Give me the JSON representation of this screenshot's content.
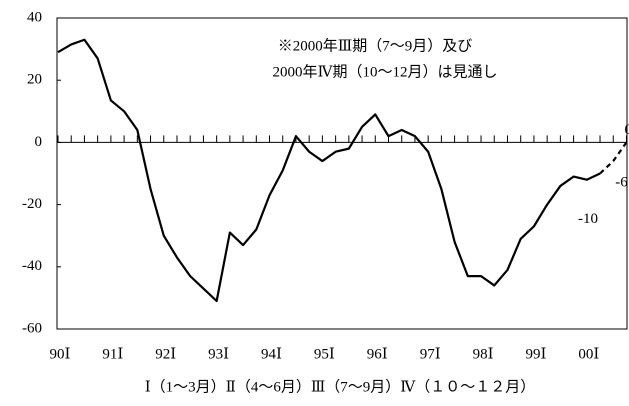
{
  "chart_data": {
    "type": "line",
    "annotation": [
      "※2000年Ⅲ期（7～9月）及び",
      "2000年Ⅳ期（10～12月）は見通し"
    ],
    "caption": "Ⅰ（1～3月）Ⅱ（4～6月）Ⅲ（7～9月）Ⅳ（１０～１２月）",
    "categories": [
      "90Ⅰ",
      null,
      null,
      null,
      "91Ⅰ",
      null,
      null,
      null,
      "92Ⅰ",
      null,
      null,
      null,
      "93Ⅰ",
      null,
      null,
      null,
      "94Ⅰ",
      null,
      null,
      null,
      "95Ⅰ",
      null,
      null,
      null,
      "96Ⅰ",
      null,
      null,
      null,
      "97Ⅰ",
      null,
      null,
      null,
      "98Ⅰ",
      null,
      null,
      null,
      "99Ⅰ",
      null,
      null,
      null,
      "00Ⅰ",
      null,
      null,
      null
    ],
    "series": [
      {
        "color": "#000000",
        "dashed": false,
        "show_labels": false,
        "values": [
          29,
          31.5,
          33,
          27,
          13.5,
          10,
          4,
          -15,
          -30,
          -37,
          -43,
          -47,
          -51,
          -29,
          -33,
          -28,
          -17,
          -9,
          2,
          -3,
          -6,
          -3,
          -2,
          5,
          9,
          2,
          4,
          2,
          -3,
          -15,
          -32,
          -43,
          -43,
          -46,
          -41,
          -31,
          -27,
          -20,
          -14,
          -11,
          -12,
          -10,
          null,
          null
        ]
      },
      {
        "color": "#000000",
        "dashed": true,
        "show_labels": true,
        "values": [
          null,
          null,
          null,
          null,
          null,
          null,
          null,
          null,
          null,
          null,
          null,
          null,
          null,
          null,
          null,
          null,
          null,
          null,
          null,
          null,
          null,
          null,
          null,
          null,
          null,
          null,
          null,
          null,
          null,
          null,
          null,
          null,
          null,
          null,
          null,
          null,
          null,
          null,
          null,
          null,
          null,
          -10,
          -6,
          0
        ]
      }
    ],
    "ylim": [
      -60,
      40
    ],
    "yticks": [
      40,
      20,
      0,
      -20,
      -40,
      -60
    ],
    "zero_line": true
  }
}
